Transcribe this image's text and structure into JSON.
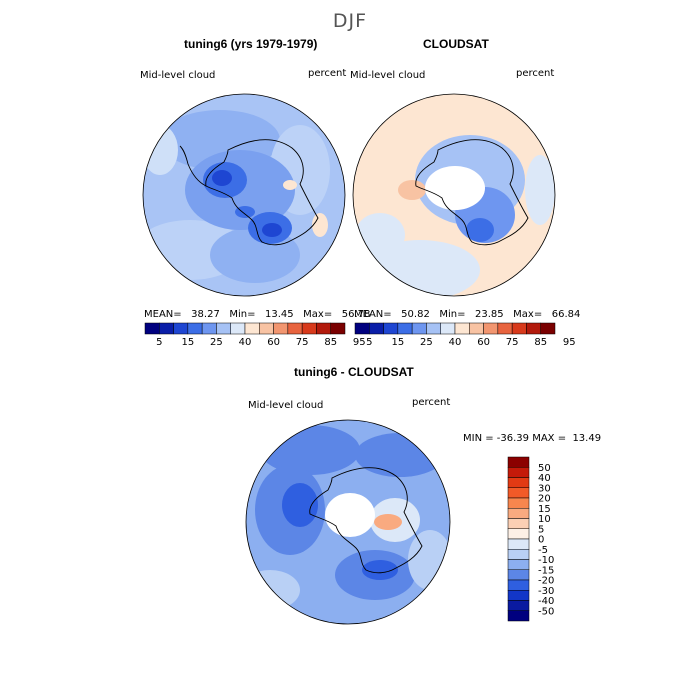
{
  "season": "DJF",
  "panels": [
    {
      "title": "tuning6 (yrs 1979-1979)",
      "variable": "Mid-level cloud",
      "units": "percent",
      "stats_label": "MEAN=   38.27   Min=   13.45   Max=   56.78"
    },
    {
      "title": "CLOUDSAT",
      "variable": "Mid-level cloud",
      "units": "percent",
      "stats_label": "MEAN=   50.82   Min=   23.85   Max=   66.84"
    }
  ],
  "diff_panel": {
    "title": "tuning6 - CLOUDSAT",
    "variable": "Mid-level cloud",
    "units": "percent",
    "minmax_label": "MIN = -36.39 MAX =  13.49"
  },
  "colorbar_top": {
    "tick_labels": [
      "5",
      "15",
      "25",
      "40",
      "60",
      "75",
      "85",
      "95"
    ],
    "colors": [
      "#00007f",
      "#0a1ea8",
      "#1e46d2",
      "#3c6ee6",
      "#6e96f0",
      "#a6c2f5",
      "#dce8f8",
      "#fde6d2",
      "#f8c3a3",
      "#f29670",
      "#e8643f",
      "#d83a1c",
      "#b21a0c",
      "#7a0000"
    ]
  },
  "colorbar_diff": {
    "labels": [
      "50",
      "40",
      "30",
      "20",
      "15",
      "10",
      "5",
      "0",
      "-5",
      "-10",
      "-15",
      "-20",
      "-30",
      "-40",
      "-50"
    ],
    "colors": [
      "#8b0000",
      "#c41a0a",
      "#e23a14",
      "#f25a28",
      "#f7864e",
      "#f9aa80",
      "#fbcfb4",
      "#fdf0e6",
      "#dce8f8",
      "#b9d0f5",
      "#8caff0",
      "#5c86e6",
      "#2f5fe0",
      "#1236c8",
      "#0a1aa0",
      "#00007f"
    ]
  },
  "chart_data": {
    "type": "map",
    "projection": "south-polar-stereographic",
    "title": "DJF",
    "fields": [
      {
        "name": "tuning6 (yrs 1979-1979)",
        "mean": 38.27,
        "min": 13.45,
        "max": 56.78
      },
      {
        "name": "CLOUDSAT",
        "mean": 50.82,
        "min": 23.85,
        "max": 66.84
      },
      {
        "name": "tuning6 - CLOUDSAT",
        "min": -36.39,
        "max": 13.49
      }
    ],
    "contour_levels_field": [
      5,
      15,
      25,
      40,
      60,
      75,
      85,
      95
    ],
    "contour_levels_diff": [
      -50,
      -40,
      -30,
      -20,
      -15,
      -10,
      -5,
      0,
      5,
      10,
      15,
      20,
      30,
      40,
      50
    ]
  }
}
